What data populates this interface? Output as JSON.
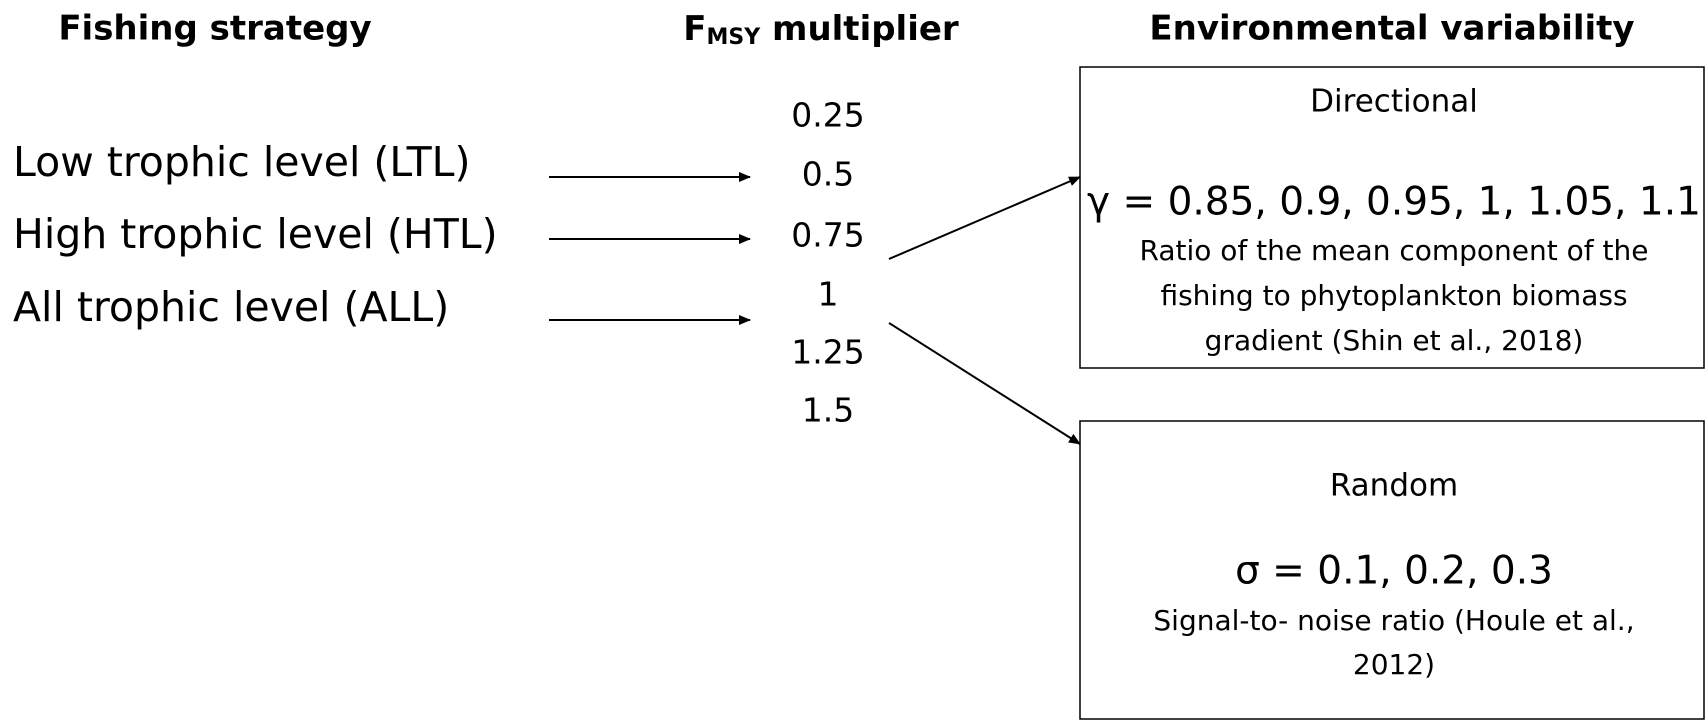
{
  "headers": {
    "strategy": "Fishing strategy",
    "multiplier": {
      "main": "F",
      "subscript": "MSY",
      "rest": " multiplier"
    },
    "environment": "Environmental variability"
  },
  "strategies": [
    "Low trophic level (LTL)",
    "High trophic level (HTL)",
    "All trophic level (ALL)"
  ],
  "multipliers": [
    "0.25",
    "0.5",
    "0.75",
    "1",
    "1.25",
    "1.5"
  ],
  "boxes": [
    {
      "title": "Directional",
      "formula": "γ = 0.85, 0.9, 0.95, 1, 1.05, 1.1",
      "description": [
        "Ratio of the mean component of the",
        "fishing to phytoplankton biomass",
        "gradient (Shin et al., 2018)"
      ]
    },
    {
      "title": "Random",
      "formula": "σ = 0.1, 0.2, 0.3",
      "description": [
        "Signal-to- noise ratio (Houle et al.,",
        "2012)"
      ]
    }
  ]
}
